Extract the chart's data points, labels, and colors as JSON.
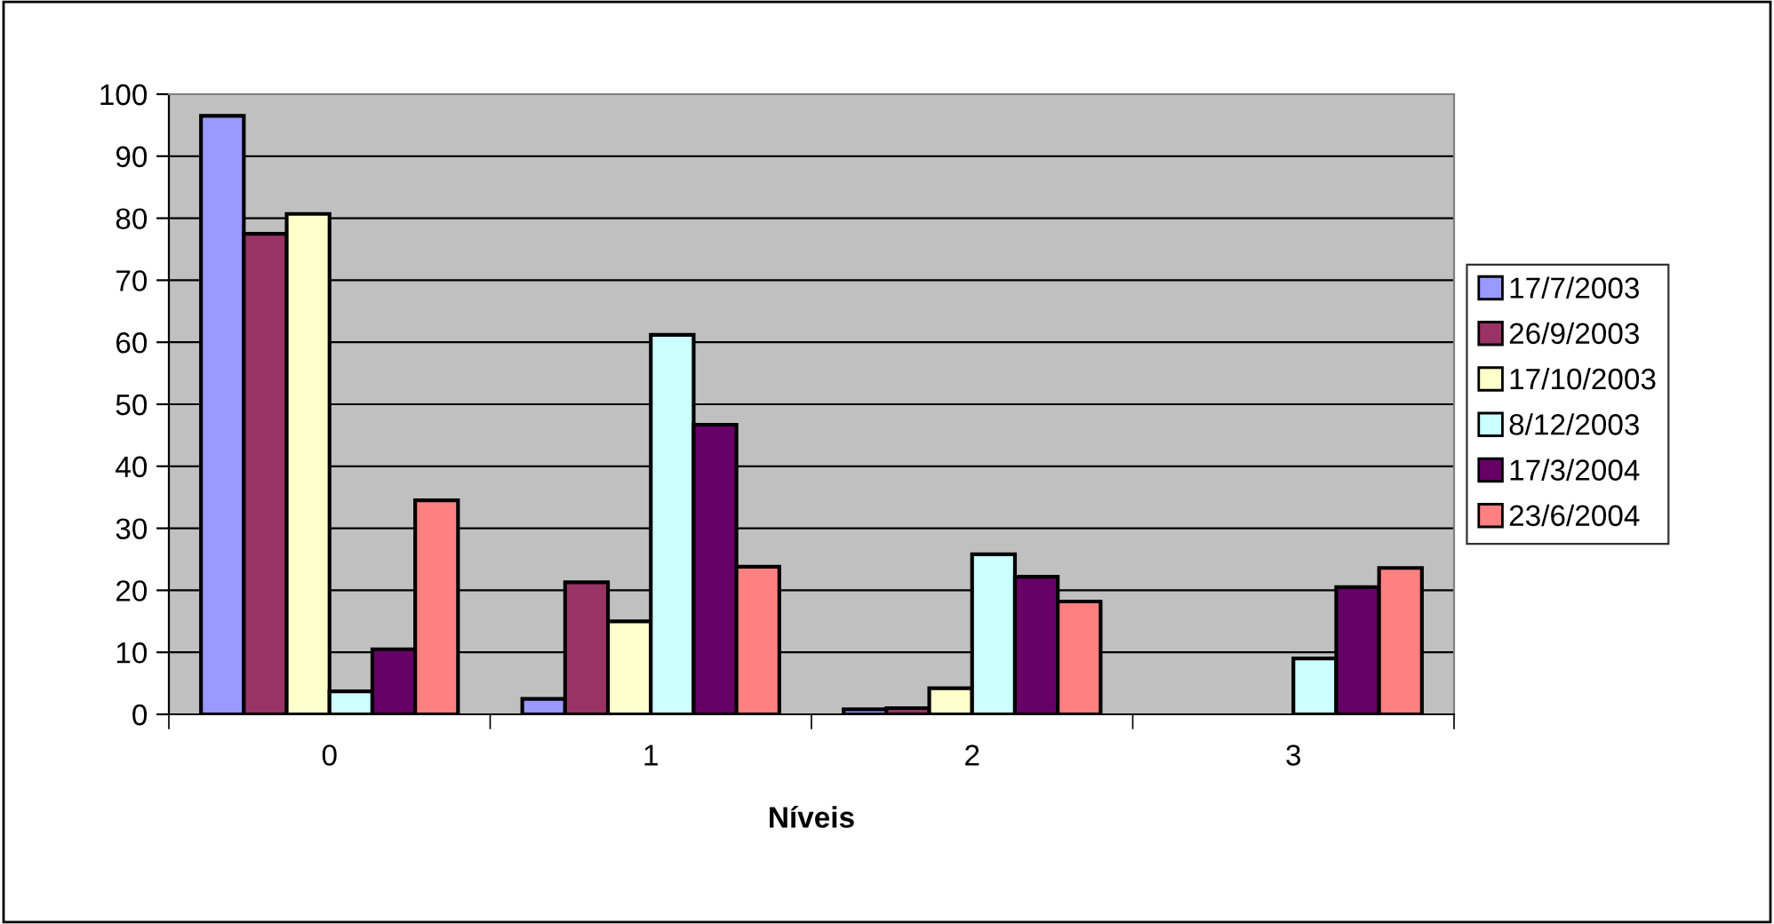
{
  "chart_data": {
    "type": "bar",
    "xlabel": "Níveis",
    "categories": [
      "0",
      "1",
      "2",
      "3"
    ],
    "series": [
      {
        "name": "17/7/2003",
        "color": "#9999ff",
        "values": [
          96.5,
          2.5,
          0.8,
          null
        ]
      },
      {
        "name": "26/9/2003",
        "color": "#993366",
        "values": [
          77.5,
          21.3,
          1.0,
          null
        ]
      },
      {
        "name": "17/10/2003",
        "color": "#ffffcc",
        "values": [
          80.7,
          15.0,
          4.2,
          null
        ]
      },
      {
        "name": "8/12/2003",
        "color": "#ccffff",
        "values": [
          3.7,
          61.2,
          25.8,
          9.0
        ]
      },
      {
        "name": "17/3/2004",
        "color": "#660066",
        "values": [
          10.5,
          46.7,
          22.2,
          20.5
        ]
      },
      {
        "name": "23/6/2004",
        "color": "#ff8080",
        "values": [
          34.5,
          23.8,
          18.2,
          23.6
        ]
      }
    ],
    "ylim": [
      0,
      100
    ],
    "yticks": [
      0,
      10,
      20,
      30,
      40,
      50,
      60,
      70,
      80,
      90,
      100
    ],
    "grid": "y",
    "legend": "right"
  }
}
